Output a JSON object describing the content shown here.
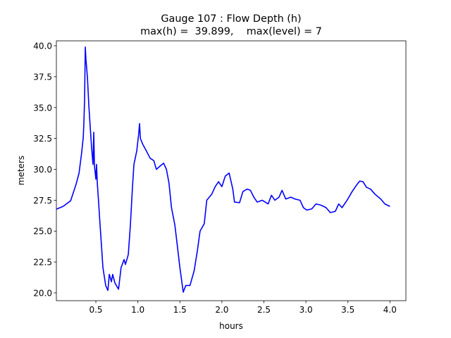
{
  "chart_data": {
    "type": "line",
    "title": [
      "Gauge 107 : Flow Depth (h)",
      "max(h) =  39.899,    max(level) = 7"
    ],
    "xlabel": "hours",
    "ylabel": "meters",
    "xlim": [
      0.03,
      4.19
    ],
    "ylim": [
      19.37,
      40.4
    ],
    "xticks": [
      0.5,
      {
        "value": 1.0,
        "label": "1.0"
      },
      1.5,
      {
        "value": 2.0,
        "label": "2.0"
      },
      2.5,
      {
        "value": 3.0,
        "label": "3.0"
      },
      3.5,
      {
        "value": 4.0,
        "label": "4.0"
      }
    ],
    "yticks": [
      {
        "value": 20,
        "label": "20.0"
      },
      22.5,
      {
        "value": 25,
        "label": "25.0"
      },
      27.5,
      {
        "value": 30,
        "label": "30.0"
      },
      32.5,
      {
        "value": 35,
        "label": "35.0"
      },
      37.5,
      {
        "value": 40,
        "label": "40.0"
      }
    ],
    "grid": false,
    "series": [
      {
        "color": "#0000ff",
        "x": [
          0.03,
          0.11,
          0.2,
          0.265,
          0.3,
          0.33,
          0.35,
          0.357,
          0.366,
          0.374,
          0.382,
          0.4,
          0.416,
          0.433,
          0.45,
          0.466,
          0.475,
          0.483,
          0.5,
          0.508,
          0.517,
          0.534,
          0.55,
          0.567,
          0.584,
          0.617,
          0.643,
          0.66,
          0.685,
          0.7,
          0.727,
          0.77,
          0.8,
          0.836,
          0.852,
          0.886,
          0.911,
          0.936,
          0.953,
          0.987,
          1.01,
          1.02,
          1.03,
          1.06,
          1.1,
          1.146,
          1.19,
          1.22,
          1.27,
          1.306,
          1.34,
          1.37,
          1.4,
          1.44,
          1.47,
          1.5,
          1.54,
          1.57,
          1.62,
          1.67,
          1.71,
          1.74,
          1.79,
          1.82,
          1.88,
          1.92,
          1.96,
          2.0,
          2.04,
          2.086,
          2.13,
          2.15,
          2.21,
          2.25,
          2.3,
          2.34,
          2.38,
          2.42,
          2.48,
          2.55,
          2.59,
          2.63,
          2.68,
          2.716,
          2.76,
          2.82,
          2.87,
          2.93,
          2.97,
          3.01,
          3.07,
          3.12,
          3.18,
          3.24,
          3.29,
          3.35,
          3.39,
          3.43,
          3.49,
          3.55,
          3.6,
          3.64,
          3.68,
          3.72,
          3.77,
          3.82,
          3.89,
          3.94,
          4.0
        ],
        "values": [
          26.78,
          27.0,
          27.46,
          28.8,
          29.7,
          31.3,
          32.6,
          33.7,
          35.7,
          39.9,
          38.9,
          37.4,
          35.2,
          33.4,
          31.7,
          30.4,
          33.0,
          30.3,
          29.2,
          30.4,
          28.9,
          27.2,
          25.5,
          23.8,
          22.05,
          20.6,
          20.2,
          21.5,
          20.9,
          21.5,
          20.8,
          20.3,
          22.05,
          22.7,
          22.3,
          23.1,
          25.5,
          28.6,
          30.4,
          31.5,
          32.9,
          33.7,
          32.5,
          32.0,
          31.5,
          30.9,
          30.7,
          30.0,
          30.3,
          30.5,
          30.0,
          28.9,
          26.9,
          25.5,
          23.8,
          22.05,
          20.06,
          20.6,
          20.6,
          21.8,
          23.5,
          25.0,
          25.6,
          27.5,
          28.0,
          28.6,
          29.0,
          28.6,
          29.45,
          29.7,
          28.4,
          27.35,
          27.3,
          28.2,
          28.4,
          28.3,
          27.75,
          27.35,
          27.5,
          27.2,
          27.9,
          27.5,
          27.75,
          28.3,
          27.6,
          27.75,
          27.6,
          27.5,
          26.9,
          26.7,
          26.8,
          27.2,
          27.1,
          26.9,
          26.5,
          26.6,
          27.2,
          26.9,
          27.5,
          28.2,
          28.7,
          29.05,
          29.0,
          28.55,
          28.4,
          28.0,
          27.6,
          27.2,
          27.0
        ]
      }
    ]
  }
}
